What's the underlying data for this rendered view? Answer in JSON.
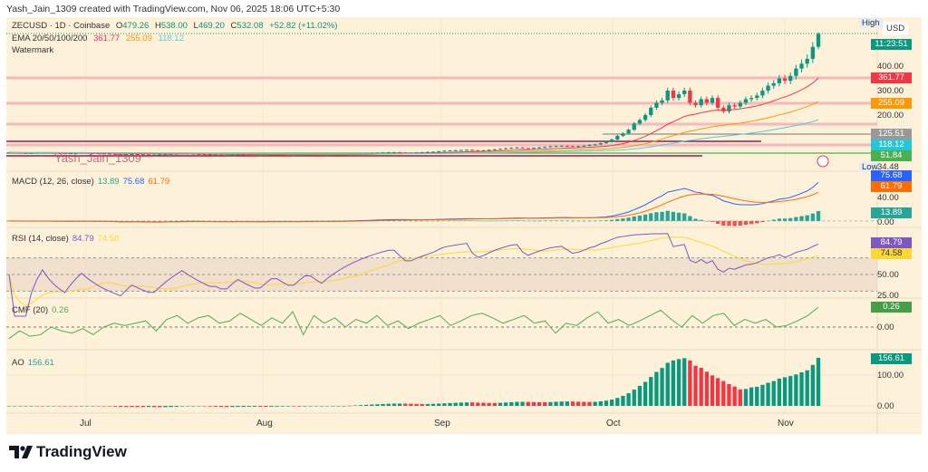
{
  "header": {
    "credit": "Yash_Jain_1309 created with TradingView.com, Nov 06, 2025 18:06 UTC+5:30"
  },
  "legend": {
    "symbol": "ZECUSD · 1D · Coinbase",
    "o_label": "O",
    "o": "479.26",
    "h_label": "H",
    "h": "538.00",
    "l_label": "L",
    "l": "469.20",
    "c_label": "C",
    "c": "532.08",
    "chg": "+52.82 (+11.02%)",
    "ema_label": "EMA 20/50/100/200",
    "ema20": "361.77",
    "ema50": "255.09",
    "ema100": "118.12",
    "watermark_label": "Watermark"
  },
  "watermark": "Yash_Jain_1309",
  "price_scale": {
    "currency": "USD",
    "high_label": "High",
    "low_label": "Low",
    "low_value": "34.48",
    "countdown": "11:23:51",
    "ticks": [
      "400.00",
      "300.00",
      "200.00"
    ],
    "tags": {
      "ema20": "361.77",
      "ema50": "255.09",
      "gray_line": "125.51",
      "ema100": "118.12",
      "green_line": "51.84"
    }
  },
  "macd": {
    "label": "MACD (12, 26, close)",
    "hist": "13.89",
    "macd": "75.68",
    "signal": "61.79",
    "ticks": [
      "40.00",
      "0.00"
    ]
  },
  "rsi": {
    "label": "RSI (14, close)",
    "rsi": "84.79",
    "ma": "74.58",
    "ticks": [
      "50.00",
      "25.00"
    ]
  },
  "cmf": {
    "label": "CMF (20)",
    "value": "0.26",
    "ticks": [
      "0.00"
    ]
  },
  "ao": {
    "label": "AO",
    "value": "156.61",
    "ticks": [
      "100.00",
      "0.00"
    ]
  },
  "x_axis": {
    "labels": [
      "Jul",
      "Aug",
      "Sep",
      "Oct",
      "Nov"
    ]
  },
  "brand": {
    "name": "TradingView"
  },
  "colors": {
    "up": "#089981",
    "down": "#f23645",
    "ema20": "#f23645",
    "ema50": "#ff9800",
    "ema100": "#4dd0e1",
    "bg": "#fdf1da",
    "macd": "#2962ff",
    "signal": "#ff6d00",
    "rsi": "#7e57c2",
    "rsi_ma": "#fdd835",
    "cmf": "#4caf50"
  },
  "chart_data": {
    "type": "candlestick",
    "symbol": "ZECUSD",
    "interval": "1D",
    "start_date": "2025-06-14",
    "end_date": "2025-11-06",
    "closes": [
      47,
      46,
      45,
      44,
      45,
      46,
      47,
      46,
      45,
      44,
      43,
      44,
      45,
      46,
      45,
      44,
      43,
      42,
      41,
      40,
      39,
      40,
      41,
      40,
      39,
      38,
      38,
      39,
      40,
      41,
      42,
      43,
      42,
      41,
      40,
      39,
      38,
      38,
      37,
      37,
      38,
      39,
      38,
      37,
      36,
      36,
      37,
      38,
      38,
      37,
      36,
      36,
      37,
      38,
      38,
      37,
      36,
      37,
      38,
      39,
      40,
      41,
      42,
      43,
      44,
      45,
      46,
      47,
      48,
      48,
      47,
      46,
      46,
      47,
      48,
      49,
      50,
      52,
      54,
      55,
      56,
      57,
      58,
      56,
      55,
      56,
      58,
      60,
      62,
      64,
      66,
      67,
      65,
      64,
      66,
      68,
      70,
      72,
      73,
      74,
      73,
      72,
      73,
      75,
      78,
      80,
      85,
      90,
      100,
      115,
      125,
      140,
      165,
      180,
      200,
      230,
      250,
      260,
      300,
      270,
      285,
      300,
      250,
      240,
      265,
      250,
      270,
      230,
      215,
      240,
      235,
      250,
      265,
      270,
      280,
      300,
      320,
      330,
      350,
      340,
      360,
      390,
      410,
      430,
      479,
      532.08
    ],
    "last": {
      "open": 479.26,
      "high": 538.0,
      "low": 469.2,
      "close": 532.08
    },
    "cmf": [
      -0.15,
      -0.05,
      -0.12,
      -0.1,
      0,
      -0.05,
      -0.08,
      -0.02,
      -0.1,
      0,
      0.05,
      0.02,
      0.05,
      0.08,
      -0.05,
      0.1,
      0.15,
      0.05,
      0.12,
      0.15,
      0.05,
      0.08,
      0.18,
      0.1,
      0.02,
      0.12,
      0.05,
      0.2,
      -0.1,
      0.15,
      0.05,
      0.12,
      0,
      0.1,
      0.05,
      0.15,
      0.02,
      0.08,
      -0.02,
      0.05,
      0.1,
      0.15,
      0.02,
      0.08,
      0.15,
      0.18,
      0.12,
      0.05,
      0.1,
      0.15,
      0.05,
      0.08,
      -0.08,
      0.05,
      0.02,
      0.12,
      0.2,
      0.05,
      0.1,
      0.02,
      0.08,
      0.15,
      0.22,
      0.1,
      0.0,
      0.15,
      0.05,
      0.15,
      0.18,
      0.02,
      0.1,
      0.05,
      0.1,
      0.0,
      0.02,
      0.08,
      0.15,
      0.26
    ],
    "price_ylim": [
      0,
      560
    ],
    "macd_ylim": [
      -5,
      85
    ],
    "rsi_ylim": [
      20,
      95
    ],
    "cmf_ylim": [
      -0.3,
      0.35
    ],
    "ao_ylim": [
      -10,
      170
    ]
  }
}
